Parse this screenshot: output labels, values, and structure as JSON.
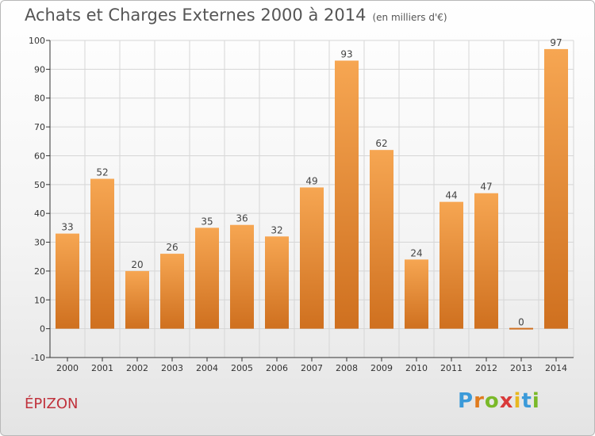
{
  "header": {
    "title": "Achats et Charges Externes 2000 à 2014",
    "unit": "(en milliers d'€)"
  },
  "footer": {
    "commune": "ÉPIZON",
    "logo_letters": [
      "P",
      "r",
      "o",
      "x",
      "i",
      "t",
      "i"
    ],
    "logo_colors": [
      "#3b9ad9",
      "#e07b1e",
      "#7ab929",
      "#d93a3a",
      "#e8b820",
      "#3b9ad9",
      "#7ab929"
    ]
  },
  "chart_data": {
    "type": "bar",
    "categories": [
      "2000",
      "2001",
      "2002",
      "2003",
      "2004",
      "2005",
      "2006",
      "2007",
      "2008",
      "2009",
      "2010",
      "2011",
      "2012",
      "2013",
      "2014"
    ],
    "values": [
      33,
      52,
      20,
      26,
      35,
      36,
      32,
      49,
      93,
      62,
      24,
      44,
      47,
      0,
      97
    ],
    "data_labels": [
      "33",
      "52",
      "20",
      "26",
      "35",
      "36",
      "32",
      "49",
      "93",
      "62",
      "24",
      "44",
      "47",
      "0",
      "97"
    ],
    "yticks": [
      -10,
      0,
      10,
      20,
      30,
      40,
      50,
      60,
      70,
      80,
      90,
      100
    ],
    "ylim": [
      -10,
      100
    ],
    "grid": true,
    "colors": {
      "bar_top": "#f6a652",
      "bar_bottom": "#cf701f",
      "grid": "#d6d6d6",
      "axis": "#333333"
    }
  }
}
